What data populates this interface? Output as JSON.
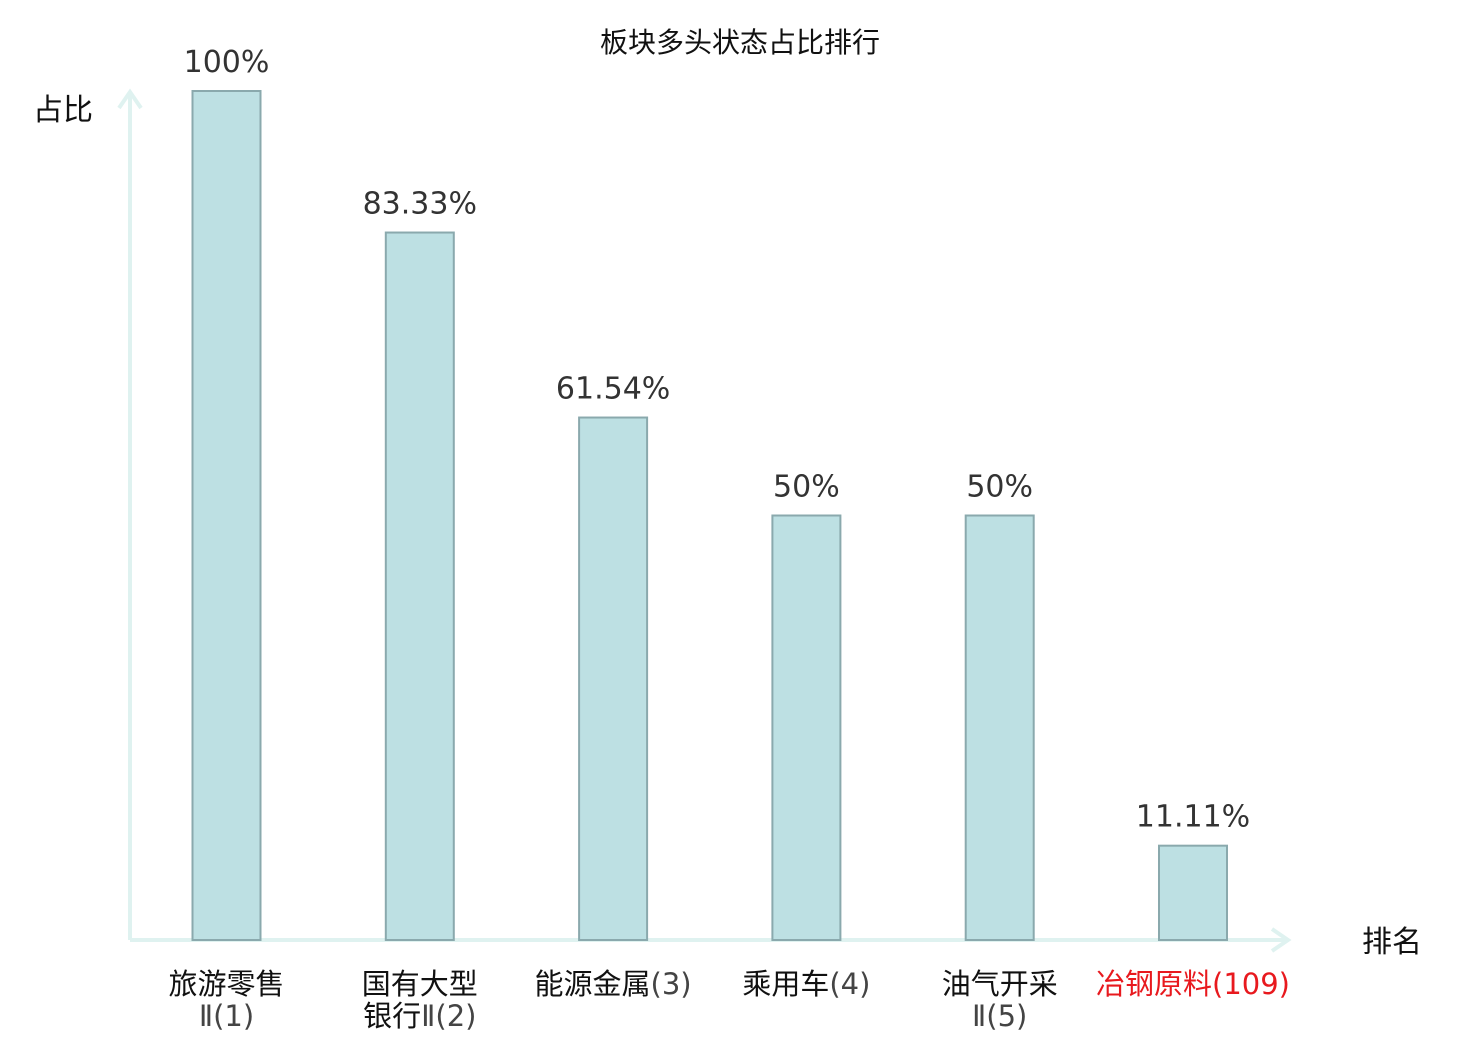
{
  "chart_data": {
    "type": "bar",
    "title": "板块多头状态占比排行",
    "ylabel": "占比",
    "xlabel": "排名",
    "ylim": [
      0,
      100
    ],
    "categories": [
      {
        "name_lines": [
          "旅游零售"
        ],
        "suffix_lines": [
          "Ⅱ(1)"
        ],
        "highlight": false
      },
      {
        "name_lines": [
          "国有大型",
          "银行"
        ],
        "suffix_lines": [
          "",
          "Ⅱ(2)"
        ],
        "highlight": false
      },
      {
        "name_lines": [
          "能源金属"
        ],
        "suffix_lines": [
          "(3)"
        ],
        "highlight": false
      },
      {
        "name_lines": [
          "乘用车"
        ],
        "suffix_lines": [
          "(4)"
        ],
        "highlight": false
      },
      {
        "name_lines": [
          "油气开采"
        ],
        "suffix_lines": [
          "Ⅱ(5)"
        ],
        "highlight": false
      },
      {
        "name_lines": [
          "冶钢原料"
        ],
        "suffix_lines": [
          "(109)"
        ],
        "highlight": true
      }
    ],
    "values": [
      100,
      83.33,
      61.54,
      50,
      50,
      11.11
    ],
    "value_labels": [
      "100%",
      "83.33%",
      "61.54%",
      "50%",
      "50%",
      "11.11%"
    ],
    "grid": false,
    "colors": {
      "bar_fill": "#bde0e3",
      "bar_stroke": "#8aa9ad",
      "axis": "#dff2f0",
      "name_text": "#111111",
      "suffix_text": "#444444",
      "highlight_text": "#e8191e"
    }
  }
}
